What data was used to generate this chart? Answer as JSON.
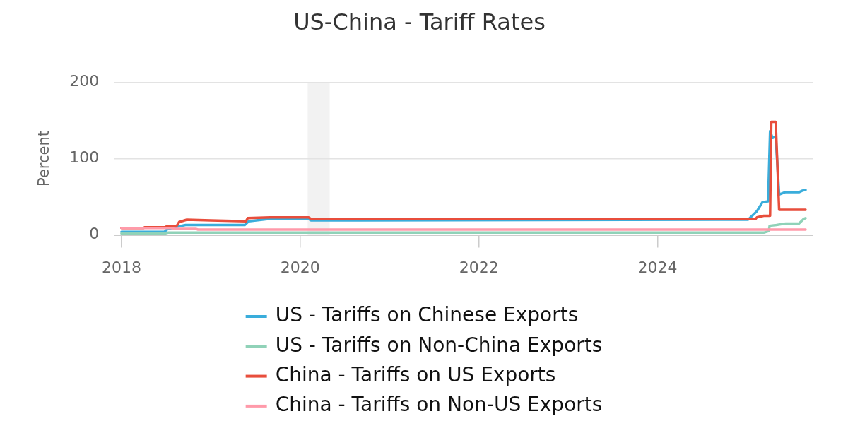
{
  "chart_data": {
    "type": "line",
    "title": "US-China - Tariff Rates",
    "ylabel": "Percent",
    "xlim": [
      "2017-12-04",
      "2025-09-26"
    ],
    "xticks": [
      "2018",
      "2020",
      "2022",
      "2024"
    ],
    "ylim": [
      0,
      200
    ],
    "yticks": [
      0,
      100,
      200
    ],
    "grid": "y",
    "legend": "bottom",
    "bands": [
      {
        "axis": "x",
        "from": "2020-02-01",
        "to": "2020-05-01",
        "color": "#f2f2f2"
      }
    ],
    "series": [
      {
        "name": "US - Tariffs on Chinese Exports",
        "color": "#3aaddb",
        "x": [
          "2018-01-01",
          "2018-06-25",
          "2018-07-10",
          "2018-08-20",
          "2018-09-20",
          "2019-05-20",
          "2019-06-05",
          "2019-08-25",
          "2020-02-05",
          "2020-02-15",
          "2025-01-05",
          "2025-02-10",
          "2025-03-05",
          "2025-03-28",
          "2025-04-05",
          "2025-04-15",
          "2025-04-28",
          "2025-05-12",
          "2025-06-05",
          "2025-08-01",
          "2025-08-15",
          "2025-08-28"
        ],
        "values": [
          4,
          4,
          8,
          11,
          13,
          13,
          18,
          21,
          21,
          19,
          20,
          31,
          43,
          44,
          136,
          127,
          129,
          53,
          56,
          56,
          58,
          59
        ]
      },
      {
        "name": "US - Tariffs on Non-China Exports",
        "color": "#90d2b8",
        "x": [
          "2018-01-01",
          "2018-06-30",
          "2018-07-10",
          "2025-03-10",
          "2025-03-31",
          "2025-04-03",
          "2025-05-01",
          "2025-06-08",
          "2025-08-01",
          "2025-08-20",
          "2025-08-28"
        ],
        "values": [
          2,
          2,
          3,
          3,
          5,
          12,
          13,
          15,
          15,
          21,
          22
        ]
      },
      {
        "name": "China - Tariffs on US Exports",
        "color": "#e84e3c",
        "x": [
          "2018-01-01",
          "2018-04-01",
          "2018-04-05",
          "2018-07-01",
          "2018-07-06",
          "2018-08-15",
          "2018-08-25",
          "2018-09-25",
          "2019-01-01",
          "2019-05-25",
          "2019-06-01",
          "2019-09-01",
          "2020-02-05",
          "2020-02-15",
          "2025-02-05",
          "2025-02-10",
          "2025-03-10",
          "2025-04-05",
          "2025-04-10",
          "2025-04-28",
          "2025-05-12",
          "2025-08-28"
        ],
        "values": [
          9,
          9,
          10,
          10,
          12,
          12,
          17,
          20,
          19,
          18,
          22,
          23,
          23,
          21,
          21,
          23,
          25,
          25,
          148,
          148,
          33,
          33
        ]
      },
      {
        "name": "China - Tariffs on Non-US Exports",
        "color": "#ff9aaa",
        "x": [
          "2018-01-01",
          "2018-07-25",
          "2018-08-05",
          "2018-10-31",
          "2018-11-10",
          "2025-08-28"
        ],
        "values": [
          9,
          9,
          8,
          8,
          7,
          7
        ]
      }
    ]
  }
}
